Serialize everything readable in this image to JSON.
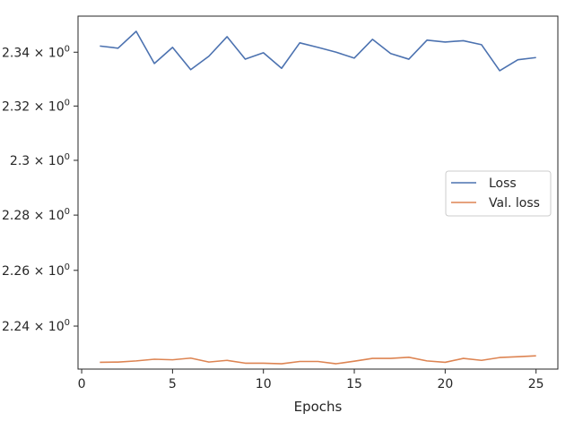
{
  "chart_data": {
    "type": "line",
    "title": "",
    "xlabel": "Epochs",
    "ylabel": "",
    "xlim": [
      -0.2,
      26.2
    ],
    "ylim": [
      2.2247,
      2.3535
    ],
    "yscale": "log",
    "grid": false,
    "legend": {
      "position": "center-right"
    },
    "x_ticks": [
      {
        "value": 0,
        "label": "0"
      },
      {
        "value": 5,
        "label": "5"
      },
      {
        "value": 10,
        "label": "10"
      },
      {
        "value": 15,
        "label": "15"
      },
      {
        "value": 20,
        "label": "20"
      },
      {
        "value": 25,
        "label": "25"
      }
    ],
    "y_ticks": [
      {
        "value": 2.24,
        "mantissa": "2.24"
      },
      {
        "value": 2.26,
        "mantissa": "2.26"
      },
      {
        "value": 2.28,
        "mantissa": "2.28"
      },
      {
        "value": 2.3,
        "mantissa": "2.3"
      },
      {
        "value": 2.32,
        "mantissa": "2.32"
      },
      {
        "value": 2.34,
        "mantissa": "2.34"
      }
    ],
    "y_tick_base": "10",
    "y_tick_exponent": "0",
    "x": [
      1,
      2,
      3,
      4,
      5,
      6,
      7,
      8,
      9,
      10,
      11,
      12,
      13,
      14,
      15,
      16,
      17,
      18,
      19,
      20,
      21,
      22,
      23,
      24,
      25
    ],
    "series": [
      {
        "name": "Loss",
        "color": "#4c72b0",
        "values": [
          2.3423,
          2.3415,
          2.3478,
          2.3358,
          2.3418,
          2.3335,
          2.3385,
          2.3458,
          2.3374,
          2.3398,
          2.334,
          2.3435,
          2.3418,
          2.34,
          2.3378,
          2.3448,
          2.3395,
          2.3374,
          2.3445,
          2.3438,
          2.3443,
          2.3428,
          2.3331,
          2.3372,
          2.338
        ]
      },
      {
        "name": "Val. loss",
        "color": "#dd8452",
        "values": [
          2.2271,
          2.2272,
          2.2276,
          2.2282,
          2.228,
          2.2286,
          2.2272,
          2.2278,
          2.2268,
          2.2268,
          2.2266,
          2.2274,
          2.2274,
          2.2266,
          2.2275,
          2.2285,
          2.2285,
          2.2289,
          2.2276,
          2.2271,
          2.2285,
          2.2278,
          2.2288,
          2.2291,
          2.2294
        ]
      }
    ]
  }
}
